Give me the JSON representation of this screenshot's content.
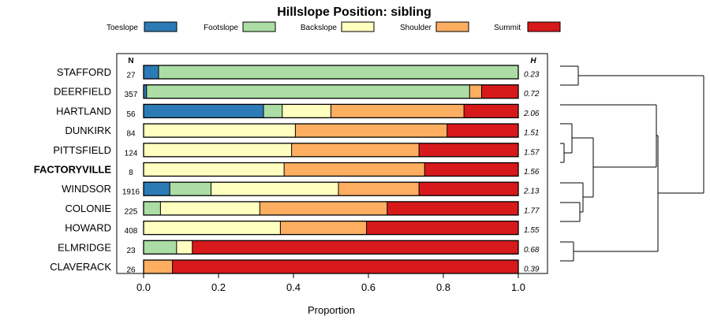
{
  "chart_data": {
    "type": "bar",
    "stacked": true,
    "orientation": "horizontal",
    "title": "Hillslope Position: sibling",
    "xlabel": "Proportion",
    "xlim": [
      0,
      1
    ],
    "x_ticks": [
      "0.0",
      "0.2",
      "0.4",
      "0.6",
      "0.8",
      "1.0"
    ],
    "n_header": "N",
    "h_header": "H",
    "legend_position": "top",
    "series": [
      {
        "name": "Toeslope",
        "color": "#2c7bb6"
      },
      {
        "name": "Footslope",
        "color": "#abdda4"
      },
      {
        "name": "Backslope",
        "color": "#ffffbf"
      },
      {
        "name": "Shoulder",
        "color": "#fdae61"
      },
      {
        "name": "Summit",
        "color": "#d7191c"
      }
    ],
    "rows": [
      {
        "label": "STAFFORD",
        "n": "27",
        "h": "0.23",
        "bold": false,
        "values": [
          0.04,
          0.96,
          0,
          0,
          0
        ]
      },
      {
        "label": "DEERFIELD",
        "n": "357",
        "h": "0.72",
        "bold": false,
        "values": [
          0.008,
          0.862,
          0,
          0.032,
          0.098
        ]
      },
      {
        "label": "HARTLAND",
        "n": "56",
        "h": "2.06",
        "bold": false,
        "values": [
          0.32,
          0.05,
          0.13,
          0.355,
          0.145
        ]
      },
      {
        "label": "DUNKIRK",
        "n": "84",
        "h": "1.51",
        "bold": false,
        "values": [
          0,
          0,
          0.405,
          0.405,
          0.19
        ]
      },
      {
        "label": "PITTSFIELD",
        "n": "124",
        "h": "1.57",
        "bold": false,
        "values": [
          0,
          0,
          0.395,
          0.34,
          0.265
        ]
      },
      {
        "label": "FACTORYVILLE",
        "n": "8",
        "h": "1.56",
        "bold": true,
        "values": [
          0,
          0,
          0.375,
          0.375,
          0.25
        ]
      },
      {
        "label": "WINDSOR",
        "n": "1916",
        "h": "2.13",
        "bold": false,
        "values": [
          0.07,
          0.11,
          0.34,
          0.215,
          0.265
        ]
      },
      {
        "label": "COLONIE",
        "n": "225",
        "h": "1.77",
        "bold": false,
        "values": [
          0,
          0.045,
          0.265,
          0.34,
          0.35
        ]
      },
      {
        "label": "HOWARD",
        "n": "408",
        "h": "1.55",
        "bold": false,
        "values": [
          0,
          0,
          0.365,
          0.23,
          0.405
        ]
      },
      {
        "label": "ELMRIDGE",
        "n": "23",
        "h": "0.68",
        "bold": false,
        "values": [
          0,
          0.088,
          0.042,
          0,
          0.87
        ]
      },
      {
        "label": "CLAVERACK",
        "n": "26",
        "h": "0.39",
        "bold": false,
        "values": [
          0,
          0,
          0,
          0.077,
          0.923
        ]
      }
    ],
    "dendrogram": {
      "type": "hierarchical-clustering",
      "leaves_in_order": [
        "STAFFORD",
        "DEERFIELD",
        "HARTLAND",
        "DUNKIRK",
        "PITTSFIELD",
        "FACTORYVILLE",
        "WINDSOR",
        "COLONIE",
        "HOWARD",
        "ELMRIDGE",
        "CLAVERACK"
      ],
      "merges": [
        {
          "a": "PITTSFIELD",
          "b": "FACTORYVILLE",
          "height": 0.06
        },
        {
          "a": "COLONIE",
          "b": "HOWARD",
          "height": 0.17
        },
        {
          "a": "DUNKIRK",
          "b": "PITTSFIELD+FACTORYVILLE",
          "height": 0.21
        },
        {
          "a": "STAFFORD",
          "b": "DEERFIELD",
          "height": 0.3
        },
        {
          "a": "WINDSOR",
          "b": "COLONIE+HOWARD",
          "height": 0.25
        },
        {
          "a": "ELMRIDGE",
          "b": "CLAVERACK",
          "height": 0.28
        },
        {
          "a": "DUNKIRK+PITTSFIELD+FACTORYVILLE",
          "b": "WINDSOR+COLONIE+HOWARD",
          "height": 0.35
        },
        {
          "a": "HARTLAND",
          "b": "DUNKIRK..HOWARD",
          "height": 0.52
        },
        {
          "a": "HARTLAND..HOWARD",
          "b": "ELMRIDGE+CLAVERACK",
          "height": 0.7
        },
        {
          "a": "STAFFORD+DEERFIELD",
          "b": "HARTLAND..CLAVERACK",
          "height": 1.0
        }
      ]
    }
  }
}
